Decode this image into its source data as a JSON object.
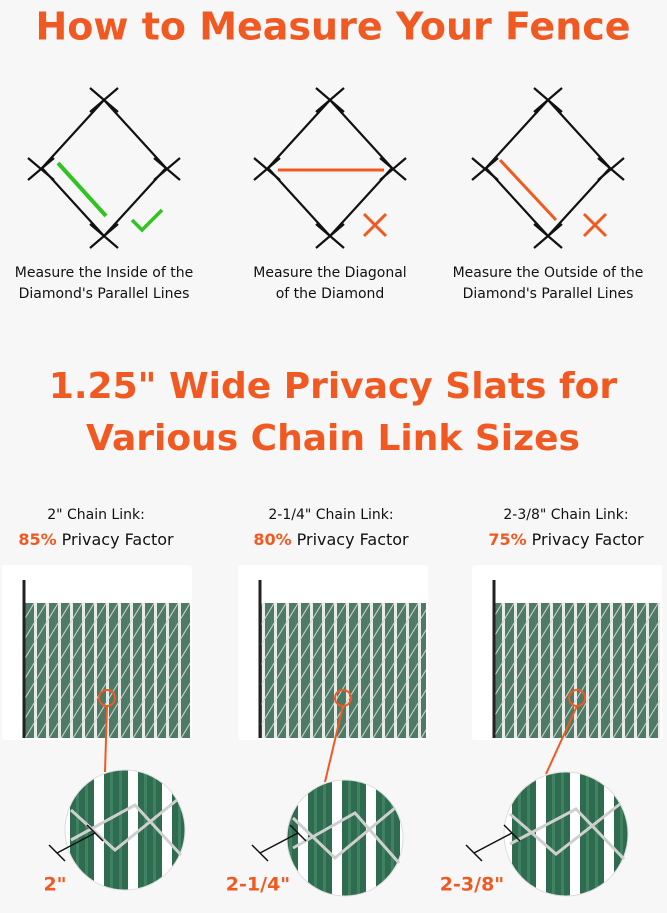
{
  "header": {
    "title": "How to Measure Your Fence"
  },
  "diagrams": [
    {
      "caption": [
        "Measure the Inside of the",
        "Diamond's Parallel Lines"
      ]
    },
    {
      "caption": [
        "Measure the Diagonal",
        "of the Diamond"
      ]
    },
    {
      "caption": [
        "Measure the Outside of the",
        "Diamond's Parallel Lines"
      ]
    }
  ],
  "section": {
    "title": [
      "1.25\" Wide Privacy Slats for",
      "Various Chain Link Sizes"
    ]
  },
  "panels": [
    {
      "label": "2\" Chain Link:",
      "factor": "85%",
      "factor_text": "Privacy Factor",
      "size": "2\""
    },
    {
      "label": "2-1/4\" Chain Link:",
      "factor": "80%",
      "factor_text": "Privacy Factor",
      "size": "2-1/4\""
    },
    {
      "label": "2-3/8\" Chain Link:",
      "factor": "75%",
      "factor_text": "Privacy Factor",
      "size": "2-3/8\""
    }
  ]
}
